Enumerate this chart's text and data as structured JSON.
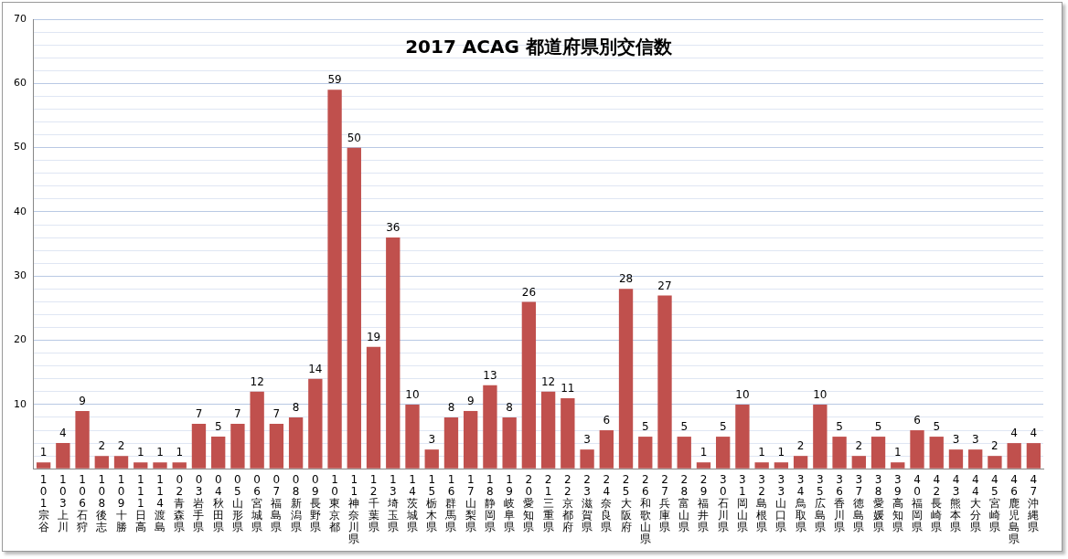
{
  "chart_data": {
    "type": "bar",
    "title": "2017 ACAG 都道府県別交信数",
    "categories": [
      "101宗谷",
      "103上川",
      "106石狩",
      "108後志",
      "109十勝",
      "111日高",
      "114渡島",
      "02青森県",
      "03岩手県",
      "04秋田県",
      "05山形県",
      "06宮城県",
      "07福島県",
      "08新潟県",
      "09長野県",
      "10東京都",
      "11神奈川県",
      "12千葉県",
      "13埼玉県",
      "14茨城県",
      "15栃木県",
      "16群馬県",
      "17山梨県",
      "18静岡県",
      "19岐阜県",
      "20愛知県",
      "21三重県",
      "22京都府",
      "23滋賀県",
      "24奈良県",
      "25大阪府",
      "26和歌山県",
      "27兵庫県",
      "28富山県",
      "29福井県",
      "30石川県",
      "31岡山県",
      "32島根県",
      "33山口県",
      "34鳥取県",
      "35広島県",
      "36香川県",
      "37徳島県",
      "38愛媛県",
      "39高知県",
      "40福岡県",
      "42長崎県",
      "43熊本県",
      "44大分県",
      "45宮崎県",
      "46鹿児島県",
      "47沖縄県"
    ],
    "values": [
      1,
      4,
      9,
      2,
      2,
      1,
      1,
      1,
      7,
      5,
      7,
      12,
      7,
      8,
      14,
      59,
      50,
      19,
      36,
      10,
      3,
      8,
      9,
      13,
      8,
      26,
      12,
      11,
      3,
      6,
      28,
      5,
      27,
      5,
      1,
      5,
      10,
      1,
      1,
      2,
      10,
      5,
      2,
      5,
      1,
      6,
      5,
      3,
      3,
      2,
      4,
      4
    ],
    "color": "#c0504d",
    "data_labels": true,
    "grid": "y",
    "legend": false,
    "ylim": [
      0,
      70
    ],
    "yticks": [
      {
        "value": 0,
        "label": null
      },
      {
        "value": 2,
        "label": null
      },
      {
        "value": 4,
        "label": null
      },
      {
        "value": 6,
        "label": null
      },
      {
        "value": 8,
        "label": null
      },
      10,
      {
        "value": 12,
        "label": null
      },
      {
        "value": 14,
        "label": null
      },
      {
        "value": 16,
        "label": null
      },
      {
        "value": 18,
        "label": null
      },
      20,
      {
        "value": 22,
        "label": null
      },
      {
        "value": 24,
        "label": null
      },
      {
        "value": 26,
        "label": null
      },
      {
        "value": 28,
        "label": null
      },
      30,
      {
        "value": 32,
        "label": null
      },
      {
        "value": 34,
        "label": null
      },
      {
        "value": 36,
        "label": null
      },
      {
        "value": 38,
        "label": null
      },
      40,
      {
        "value": 42,
        "label": null
      },
      {
        "value": 44,
        "label": null
      },
      {
        "value": 46,
        "label": null
      },
      {
        "value": 48,
        "label": null
      },
      50,
      {
        "value": 52,
        "label": null
      },
      {
        "value": 54,
        "label": null
      },
      {
        "value": 56,
        "label": null
      },
      {
        "value": 58,
        "label": null
      },
      60,
      {
        "value": 62,
        "label": null
      },
      {
        "value": 64,
        "label": null
      },
      {
        "value": 66,
        "label": null
      },
      {
        "value": 68,
        "label": null
      },
      70
    ]
  }
}
